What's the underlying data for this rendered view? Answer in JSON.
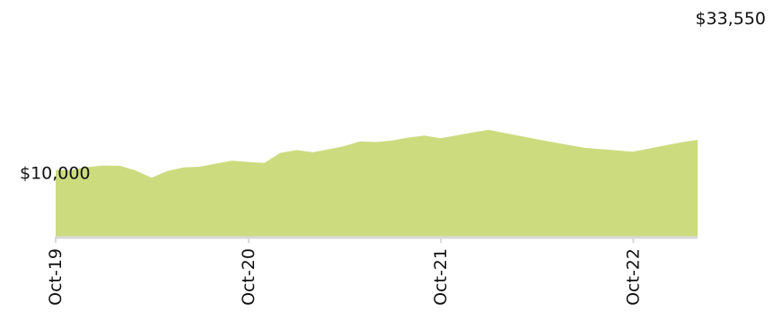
{
  "chart_data": {
    "type": "area",
    "title": "",
    "xlabel": "",
    "ylabel": "",
    "x_start": "2019-10-01",
    "x_end": "2023-01-31",
    "x": [
      "2019-10-31",
      "2019-11-30",
      "2019-12-31",
      "2020-01-31",
      "2020-02-29",
      "2020-03-31",
      "2020-04-30",
      "2020-05-31",
      "2020-06-30",
      "2020-07-31",
      "2020-08-31",
      "2020-09-30",
      "2020-10-31",
      "2020-11-30",
      "2020-12-31",
      "2021-01-31",
      "2021-02-28",
      "2021-03-31",
      "2021-04-30",
      "2021-05-31",
      "2021-06-30",
      "2021-07-31",
      "2021-08-31",
      "2021-09-30",
      "2021-10-31",
      "2021-11-30",
      "2021-12-31",
      "2022-03-31",
      "2022-06-30",
      "2022-09-30",
      "2022-12-31",
      "2023-01-31"
    ],
    "values": [
      10400,
      10850,
      11100,
      11050,
      10350,
      9200,
      10250,
      10800,
      10900,
      11400,
      11850,
      11650,
      11500,
      13050,
      13500,
      13150,
      13600,
      14100,
      14850,
      14750,
      15000,
      15450,
      15750,
      15350,
      15800,
      16250,
      16650,
      15200,
      13850,
      13250,
      14700,
      15100
    ],
    "ylim": [
      0,
      33550
    ],
    "ytick_labels": [
      "$10,000",
      "$33,550"
    ],
    "ytick_values": [
      10000,
      33550
    ],
    "xticks": [
      {
        "label": "Oct-19",
        "date": "2019-10-01"
      },
      {
        "label": "Oct-20",
        "date": "2020-10-01"
      },
      {
        "label": "Oct-21",
        "date": "2021-10-01"
      },
      {
        "label": "Oct-22",
        "date": "2022-10-01"
      }
    ],
    "grid": false,
    "legend": "none",
    "colors": {
      "fill": "#cddb7f",
      "axis": "#d9d9d9",
      "text": "#111111"
    }
  }
}
